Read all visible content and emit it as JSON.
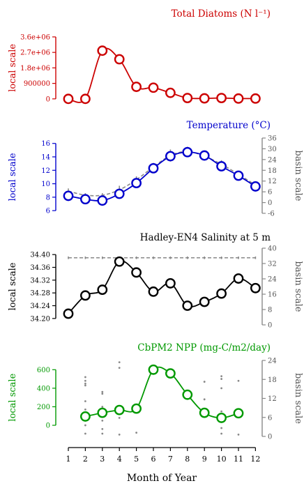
{
  "xaxis": {
    "label": "Month of Year",
    "ticks": [
      "1",
      "2",
      "3",
      "4",
      "5",
      "6",
      "7",
      "8",
      "9",
      "10",
      "11",
      "12"
    ]
  },
  "chart_data": [
    {
      "type": "line",
      "title": "Total Diatoms (N l⁻¹)",
      "color": "#cc0000",
      "ylabel_left": "local scale",
      "x": [
        1,
        2,
        3,
        4,
        5,
        6,
        7,
        8,
        9,
        10,
        11,
        12
      ],
      "series": [
        {
          "values": [
            0,
            0,
            2800000,
            2300000,
            700000,
            650000,
            350000,
            50000,
            30000,
            50000,
            20000,
            20000
          ]
        }
      ],
      "ylim": [
        -250000,
        3800000
      ],
      "yticks": [
        0,
        900000,
        1800000,
        2700000,
        3600000
      ],
      "ytick_labels": [
        "0",
        "900000",
        "1.8e+06",
        "2.7e+06",
        "3.6e+06"
      ]
    },
    {
      "type": "line",
      "title": "Temperature (°C)",
      "color": "#0000cc",
      "ylabel_left": "local scale",
      "ylabel_right": "basin scale",
      "x": [
        1,
        2,
        3,
        4,
        5,
        6,
        7,
        8,
        9,
        10,
        11,
        12
      ],
      "series": [
        {
          "values": [
            8.2,
            7.7,
            7.5,
            8.5,
            10.1,
            12.3,
            14.1,
            14.7,
            14.2,
            12.6,
            11.2,
            9.6
          ]
        }
      ],
      "ylim": [
        5.6,
        16.8
      ],
      "yticks": [
        6,
        8,
        10,
        12,
        14,
        16
      ],
      "ytick_labels": [
        "6",
        "8",
        "10",
        "12",
        "14",
        "16"
      ],
      "ylim_right": [
        -6,
        36
      ],
      "yticks_right": [
        -6,
        0,
        6,
        12,
        18,
        24,
        30,
        36
      ],
      "ytick_labels_right": [
        "-6",
        "0",
        "6",
        "12",
        "18",
        "24",
        "30",
        "36"
      ],
      "basin": {
        "color": "#888888",
        "values": [
          8.9,
          8.3,
          8.3,
          9.1,
          10.6,
          12.5,
          14.2,
          14.8,
          14.1,
          12.9,
          11.4,
          9.8
        ],
        "spread": [
          0.4,
          0.3,
          0.3,
          0.6,
          0.5,
          0.6,
          0.9,
          0.7,
          0.5,
          0.6,
          0.4,
          0.4
        ]
      }
    },
    {
      "type": "line",
      "title": "Hadley-EN4 Salinity at 5 m",
      "color": "#000000",
      "ylabel_left": "local scale",
      "ylabel_right": "basin scale",
      "x": [
        1,
        2,
        3,
        4,
        5,
        6,
        7,
        8,
        9,
        10,
        11,
        12
      ],
      "series": [
        {
          "values": [
            34.215,
            34.272,
            34.29,
            34.378,
            34.344,
            34.284,
            34.31,
            34.24,
            34.252,
            34.278,
            34.325,
            34.295
          ]
        }
      ],
      "ylim": [
        34.18,
        34.42
      ],
      "yticks": [
        34.2,
        34.24,
        34.28,
        34.32,
        34.36,
        34.4
      ],
      "ytick_labels": [
        "34.20",
        "34.24",
        "34.28",
        "34.32",
        "34.36",
        "34.40"
      ],
      "ylim_right": [
        0,
        40
      ],
      "yticks_right": [
        0,
        8,
        16,
        24,
        32,
        40
      ],
      "ytick_labels_right": [
        "0",
        "8",
        "16",
        "24",
        "32",
        "40"
      ],
      "basin": {
        "color": "#888888",
        "values": [
          34.39,
          34.39,
          34.39,
          34.39,
          34.39,
          34.39,
          34.39,
          34.39,
          34.39,
          34.39,
          34.39,
          34.39
        ],
        "spread": [
          0.004,
          0.004,
          0.004,
          0.004,
          0.004,
          0.004,
          0.004,
          0.004,
          0.004,
          0.004,
          0.004,
          0.004
        ]
      }
    },
    {
      "type": "line",
      "title": "CbPM2 NPP (mg-C/m2/day)",
      "color": "#009900",
      "ylabel_left": "local scale",
      "ylabel_right": "basin scale",
      "x": [
        2,
        3,
        4,
        5,
        6,
        7,
        8,
        9,
        10,
        11
      ],
      "series": [
        {
          "values": [
            95,
            135,
            165,
            180,
            600,
            560,
            330,
            135,
            80,
            130
          ]
        }
      ],
      "ylim": [
        -120,
        700
      ],
      "yticks": [
        0,
        200,
        400,
        600
      ],
      "ytick_labels": [
        "0",
        "200",
        "400",
        "600"
      ],
      "ylim_right": [
        0,
        24
      ],
      "yticks_right": [
        0,
        6,
        12,
        18,
        24
      ],
      "ytick_labels_right": [
        "0",
        "6",
        "12",
        "18",
        "24"
      ],
      "scatter": {
        "color": "#888888",
        "points": [
          [
            2,
            520
          ],
          [
            2,
            480
          ],
          [
            2,
            450
          ],
          [
            2,
            430
          ],
          [
            2,
            260
          ],
          [
            2,
            170
          ],
          [
            2,
            0
          ],
          [
            2,
            -90
          ],
          [
            3,
            360
          ],
          [
            3,
            340
          ],
          [
            3,
            200
          ],
          [
            3,
            50
          ],
          [
            3,
            -40
          ],
          [
            3,
            -90
          ],
          [
            4,
            680
          ],
          [
            4,
            620
          ],
          [
            4,
            200
          ],
          [
            4,
            120
          ],
          [
            4,
            80
          ],
          [
            4,
            -100
          ],
          [
            5,
            -80
          ],
          [
            9,
            470
          ],
          [
            9,
            280
          ],
          [
            9,
            90
          ],
          [
            10,
            530
          ],
          [
            10,
            500
          ],
          [
            10,
            400
          ],
          [
            10,
            150
          ],
          [
            10,
            50
          ],
          [
            10,
            -30
          ],
          [
            10,
            -90
          ],
          [
            11,
            480
          ],
          [
            11,
            -100
          ]
        ]
      }
    }
  ]
}
